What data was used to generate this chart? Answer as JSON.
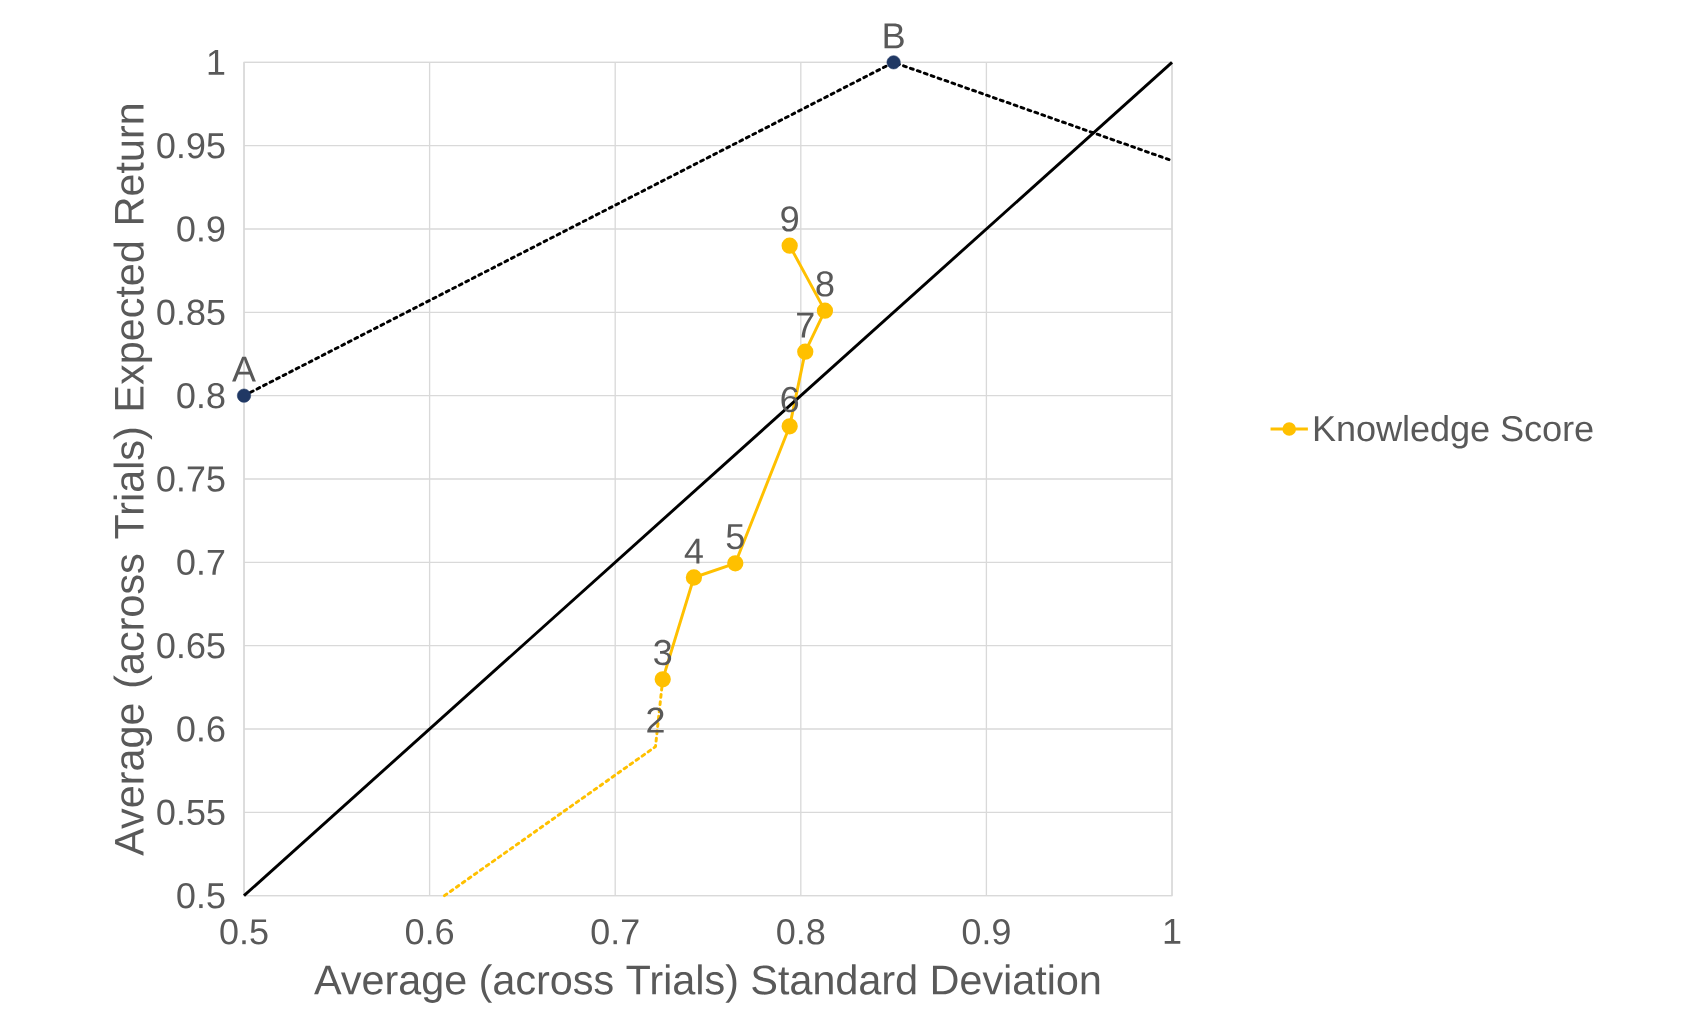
{
  "chart_data": {
    "type": "line",
    "xlabel": "Average (across Trials) Standard Deviation",
    "ylabel": "Average (across Trials) Expected Return",
    "xlim": [
      0.5,
      1
    ],
    "ylim": [
      0.5,
      1
    ],
    "xticks": [
      0.5,
      0.6,
      0.7,
      0.8,
      0.9,
      1
    ],
    "yticks": [
      0.5,
      0.55,
      0.6,
      0.65,
      0.7,
      0.75,
      0.8,
      0.85,
      0.9,
      0.95,
      1
    ],
    "grid": true,
    "legend": "right",
    "series": [
      {
        "color": "#ffc000",
        "line_style": "dotted",
        "marker": "none",
        "x": [
          0.608,
          0.7217,
          0.7256
        ],
        "values": [
          0.5,
          0.5894,
          0.6298
        ]
      },
      {
        "name": "Knowledge Score",
        "color": "#ffc000",
        "line_style": "solid",
        "marker": "circle",
        "x": [
          0.7256,
          0.7424,
          0.7647,
          0.794,
          0.8024,
          0.813,
          0.794
        ],
        "values": [
          0.6298,
          0.6909,
          0.6994,
          0.7816,
          0.8264,
          0.851,
          0.89
        ]
      },
      {
        "color": "#000000",
        "line_style": "solid",
        "marker": "none",
        "x": [
          0.5,
          1
        ],
        "values": [
          0.5,
          1
        ]
      },
      {
        "color": "#000000",
        "line_style": "dotted",
        "marker": "none",
        "x": [
          0.5,
          0.85,
          1
        ],
        "values": [
          0.8,
          1,
          0.941
        ]
      },
      {
        "type": "scatter",
        "color": "#203864",
        "marker": "circle",
        "x": [
          0.5,
          0.85
        ],
        "values": [
          0.8,
          1
        ]
      }
    ],
    "annotations": [
      {
        "text": "2",
        "x": 0.7217,
        "y": 0.5894
      },
      {
        "text": "3",
        "x": 0.7256,
        "y": 0.6298
      },
      {
        "text": "4",
        "x": 0.7424,
        "y": 0.6909
      },
      {
        "text": "5",
        "x": 0.7647,
        "y": 0.6994
      },
      {
        "text": "6",
        "x": 0.794,
        "y": 0.7816
      },
      {
        "text": "7",
        "x": 0.8024,
        "y": 0.8264
      },
      {
        "text": "8",
        "x": 0.813,
        "y": 0.851
      },
      {
        "text": "9",
        "x": 0.794,
        "y": 0.89
      },
      {
        "text": "A",
        "x": 0.5,
        "y": 0.8
      },
      {
        "text": "B",
        "x": 0.85,
        "y": 1
      }
    ]
  }
}
